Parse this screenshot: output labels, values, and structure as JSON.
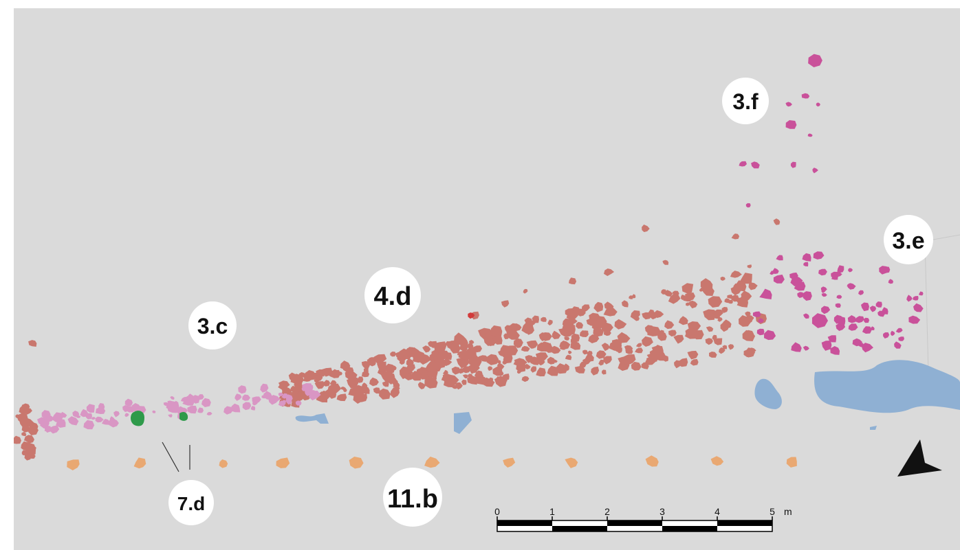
{
  "labels": {
    "l3f": "3.f",
    "l3e": "3.e",
    "l4d": "4.d",
    "l3c": "3.c",
    "l7d": "7.d",
    "l11b": "11.b"
  },
  "scale_bar": {
    "ticks": [
      "0",
      "1",
      "2",
      "3",
      "4",
      "5"
    ],
    "unit": "m"
  },
  "colors": {
    "background": "#dadada",
    "stones_brown": "#c9776e",
    "stones_pink": "#d996c4",
    "stones_magenta": "#c9519a",
    "stones_green": "#2e9a4a",
    "pits_blue": "#8fb0d3",
    "posts_orange": "#e9a872",
    "stone_red": "#d23a3a"
  },
  "icons": {
    "north_arrow": "north-arrow-icon"
  }
}
